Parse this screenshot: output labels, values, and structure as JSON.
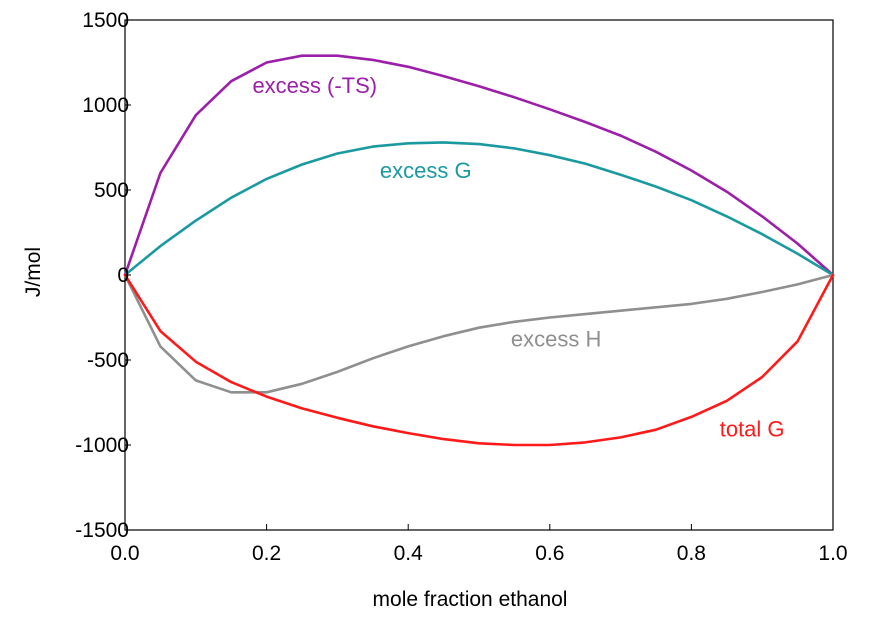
{
  "chart_data": {
    "type": "line",
    "title": "",
    "xlabel": "mole fraction ethanol",
    "ylabel": "J/mol",
    "xlim": [
      0.0,
      1.0
    ],
    "ylim": [
      -1500,
      1500
    ],
    "xticks": [
      "0.0",
      "0.2",
      "0.4",
      "0.6",
      "0.8",
      "1.0"
    ],
    "yticks": [
      "1500",
      "1000",
      "500",
      "0",
      "-500",
      "-1000",
      "-1500"
    ],
    "grid": false,
    "legend": "none",
    "series": [
      {
        "name": "excess (-TS)",
        "color": "#9b1fa8",
        "x": [
          0.0,
          0.05,
          0.1,
          0.15,
          0.2,
          0.25,
          0.3,
          0.35,
          0.4,
          0.45,
          0.5,
          0.55,
          0.6,
          0.65,
          0.7,
          0.75,
          0.8,
          0.85,
          0.9,
          0.95,
          1.0
        ],
        "y": [
          0,
          600,
          940,
          1140,
          1250,
          1290,
          1290,
          1265,
          1225,
          1170,
          1110,
          1045,
          975,
          900,
          820,
          725,
          615,
          490,
          345,
          185,
          0
        ]
      },
      {
        "name": "excess G",
        "color": "#1a9aa0",
        "x": [
          0.0,
          0.05,
          0.1,
          0.15,
          0.2,
          0.25,
          0.3,
          0.35,
          0.4,
          0.45,
          0.5,
          0.55,
          0.6,
          0.65,
          0.7,
          0.75,
          0.8,
          0.85,
          0.9,
          0.95,
          1.0
        ],
        "y": [
          0,
          170,
          320,
          455,
          565,
          650,
          715,
          755,
          775,
          780,
          770,
          745,
          705,
          655,
          590,
          520,
          440,
          345,
          240,
          125,
          0
        ]
      },
      {
        "name": "excess H",
        "color": "#8f8f8f",
        "x": [
          0.0,
          0.05,
          0.1,
          0.15,
          0.2,
          0.25,
          0.3,
          0.35,
          0.4,
          0.45,
          0.5,
          0.55,
          0.6,
          0.65,
          0.7,
          0.75,
          0.8,
          0.85,
          0.9,
          0.95,
          1.0
        ],
        "y": [
          0,
          -420,
          -620,
          -690,
          -690,
          -640,
          -570,
          -490,
          -420,
          -360,
          -310,
          -275,
          -250,
          -230,
          -210,
          -190,
          -170,
          -140,
          -100,
          -55,
          0
        ]
      },
      {
        "name": "total G",
        "color": "#ff1a1a",
        "x": [
          0.0,
          0.05,
          0.1,
          0.15,
          0.2,
          0.25,
          0.3,
          0.35,
          0.4,
          0.45,
          0.5,
          0.55,
          0.6,
          0.65,
          0.7,
          0.75,
          0.8,
          0.85,
          0.9,
          0.95,
          1.0
        ],
        "y": [
          0,
          -330,
          -510,
          -630,
          -715,
          -785,
          -840,
          -890,
          -930,
          -965,
          -990,
          -1000,
          -1000,
          -985,
          -955,
          -910,
          -835,
          -740,
          -600,
          -390,
          0
        ]
      }
    ],
    "annotations": [
      {
        "text": "excess (-TS)",
        "x": 0.18,
        "y": 1070,
        "color": "#9b1fa8"
      },
      {
        "text": "excess G",
        "x": 0.36,
        "y": 570,
        "color": "#1a9aa0"
      },
      {
        "text": "excess H",
        "x": 0.545,
        "y": -420,
        "color": "#8f8f8f"
      },
      {
        "text": "total G",
        "x": 0.84,
        "y": -950,
        "color": "#ff1a1a"
      }
    ]
  }
}
